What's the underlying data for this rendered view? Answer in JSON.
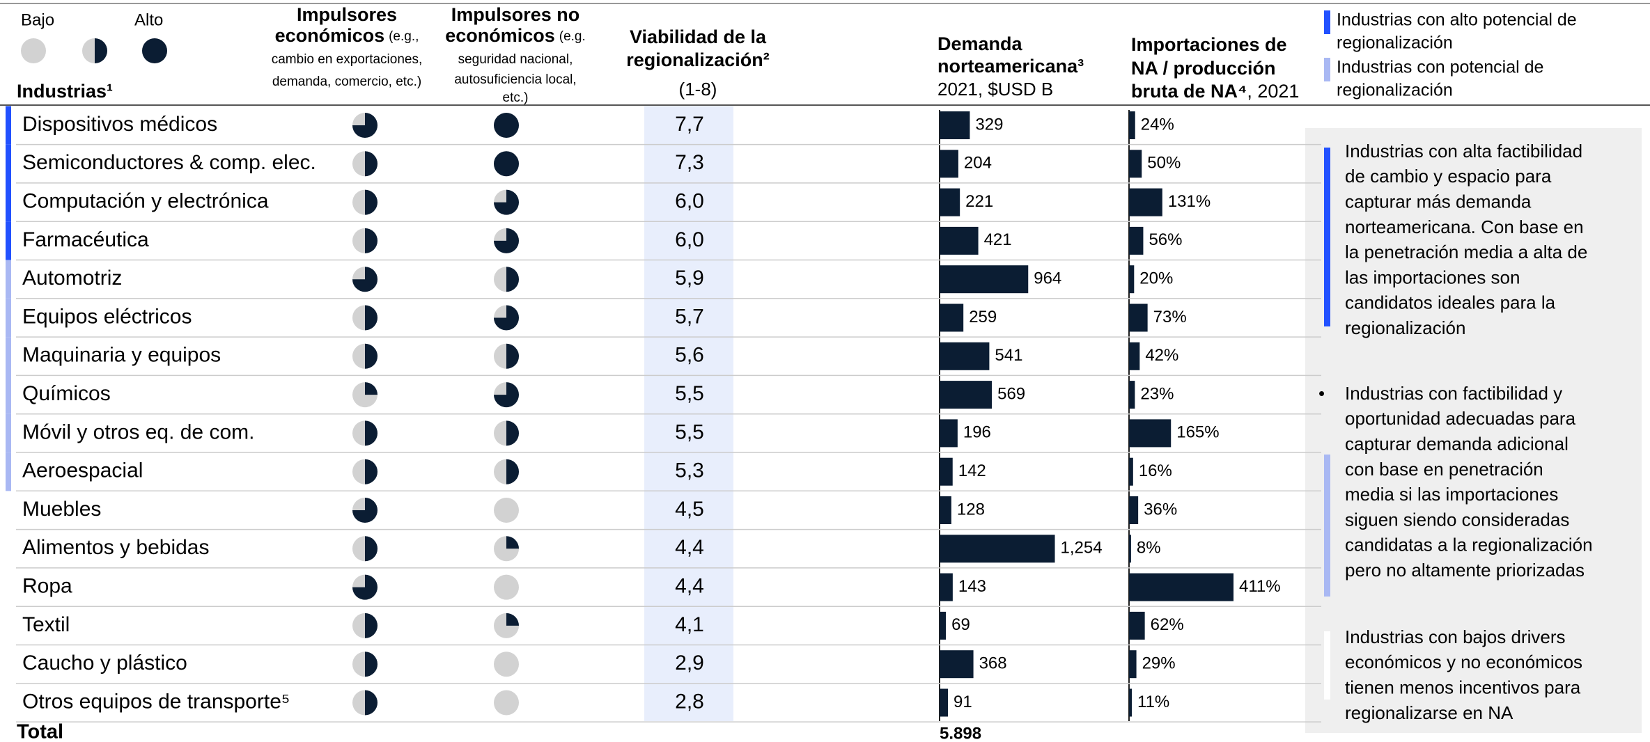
{
  "header": {
    "legend_low": "Bajo",
    "legend_high": "Alto",
    "legend_levels": [
      0,
      0.5,
      1
    ],
    "industries": "Industrias¹",
    "econ": {
      "title": [
        "Impulsores",
        "económicos"
      ],
      "note": [
        "(e.g.,",
        "cambio en exportaciones,",
        "demanda, comercio, etc.)"
      ]
    },
    "nonecon": {
      "title": [
        "Impulsores no",
        "económicos"
      ],
      "note": [
        "(e.g.",
        "seguridad nacional,",
        "autosuficiencia local,",
        "etc.)"
      ]
    },
    "viability": {
      "title": [
        "Viabilidad de la",
        "regionalización²"
      ],
      "sub": "(1-8)"
    },
    "demand": {
      "title": [
        "Demanda",
        "norteamericana³"
      ],
      "sub": "2021, $USD B"
    },
    "imports": {
      "title": [
        "Importaciones de",
        "NA / producción",
        "bruta de NA⁴"
      ],
      "sub": ", 2021"
    }
  },
  "legend": [
    {
      "label": [
        "Industrias con alto potencial de",
        "regionalización"
      ],
      "color": "#2251ff"
    },
    {
      "label": [
        "Industrias con potencial de",
        "regionalización"
      ],
      "color": "#a9b8f3"
    }
  ],
  "rows": [
    {
      "name": "Dispositivos médicos",
      "econ": 0.75,
      "nonecon": 1,
      "viability": "7,7",
      "demand": 329,
      "imports": 24,
      "imports_label": "24%",
      "group": "#2251ff"
    },
    {
      "name": "Semiconductores  & comp. elec.",
      "econ": 0.5,
      "nonecon": 1,
      "viability": "7,3",
      "demand": 204,
      "imports": 50,
      "imports_label": "50%",
      "group": "#2251ff"
    },
    {
      "name": "Computación y electrónica",
      "econ": 0.5,
      "nonecon": 0.75,
      "viability": "6,0",
      "demand": 221,
      "imports": 131,
      "imports_label": "131%",
      "group": "#2251ff"
    },
    {
      "name": "Farmacéutica",
      "econ": 0.5,
      "nonecon": 0.75,
      "viability": "6,0",
      "demand": 421,
      "imports": 56,
      "imports_label": "56%",
      "group": "#2251ff"
    },
    {
      "name": "Automotriz",
      "econ": 0.75,
      "nonecon": 0.5,
      "viability": "5,9",
      "demand": 964,
      "imports": 20,
      "imports_label": "20%",
      "group": "#a9b8f3"
    },
    {
      "name": "Equipos eléctricos",
      "econ": 0.5,
      "nonecon": 0.75,
      "viability": "5,7",
      "demand": 259,
      "imports": 73,
      "imports_label": "73%",
      "group": "#a9b8f3"
    },
    {
      "name": "Maquinaria y equipos",
      "econ": 0.5,
      "nonecon": 0.5,
      "viability": "5,6",
      "demand": 541,
      "imports": 42,
      "imports_label": "42%",
      "group": "#a9b8f3"
    },
    {
      "name": "Químicos",
      "econ": 0.25,
      "nonecon": 0.75,
      "viability": "5,5",
      "demand": 569,
      "imports": 23,
      "imports_label": "23%",
      "group": "#a9b8f3"
    },
    {
      "name": "Móvil y otros eq. de com.",
      "econ": 0.5,
      "nonecon": 0.5,
      "viability": "5,5",
      "demand": 196,
      "imports": 165,
      "imports_label": "165%",
      "group": "#a9b8f3"
    },
    {
      "name": "Aeroespacial",
      "econ": 0.5,
      "nonecon": 0.5,
      "viability": "5,3",
      "demand": 142,
      "imports": 16,
      "imports_label": "16%",
      "group": "#a9b8f3"
    },
    {
      "name": "Muebles",
      "econ": 0.75,
      "nonecon": 0,
      "viability": "4,5",
      "demand": 128,
      "imports": 36,
      "imports_label": "36%",
      "group": null
    },
    {
      "name": "Alimentos y bebidas",
      "econ": 0.5,
      "nonecon": 0.25,
      "viability": "4,4",
      "demand": 1254,
      "demand_label": "1,254",
      "imports": 8,
      "imports_label": "8%",
      "group": null
    },
    {
      "name": "Ropa",
      "econ": 0.75,
      "nonecon": 0,
      "viability": "4,4",
      "demand": 143,
      "imports": 411,
      "imports_label": "411%",
      "group": null
    },
    {
      "name": "Textil",
      "econ": 0.5,
      "nonecon": 0.25,
      "viability": "4,1",
      "demand": 69,
      "imports": 62,
      "imports_label": "62%",
      "group": null
    },
    {
      "name": "Caucho y plástico",
      "econ": 0.5,
      "nonecon": 0,
      "viability": "2,9",
      "demand": 368,
      "imports": 29,
      "imports_label": "29%",
      "group": null
    },
    {
      "name": "Otros equipos de transporte⁵",
      "econ": 0.5,
      "nonecon": 0,
      "viability": "2,8",
      "demand": 91,
      "imports": 11,
      "imports_label": "11%",
      "group": null
    }
  ],
  "total": {
    "label": "Total",
    "demand": "5.898"
  },
  "notes": [
    {
      "bullet": null,
      "color": "#2251ff",
      "lines": [
        "Industrias con alta factibilidad",
        "de cambio y espacio para",
        "capturar más demanda",
        "norteamericana. Con base en",
        "la penetración media a alta de",
        "las importaciones son",
        "candidatos ideales para la",
        "regionalización"
      ]
    },
    {
      "bullet": "•",
      "color": "#a9b8f3",
      "lines": [
        "Industrias con factibilidad y",
        "oportunidad adecuadas para",
        "capturar demanda adicional",
        "con base en penetración",
        "media si las importaciones",
        "siguen siendo consideradas",
        "candidatas a la regionalización",
        "pero no altamente priorizadas"
      ]
    },
    {
      "bullet": null,
      "color": "#ffffff",
      "lines": [
        "Industrias con bajos drivers",
        "económicos y no económicos",
        "tienen menos incentivos para",
        "regionalizarse en NA"
      ]
    }
  ]
}
